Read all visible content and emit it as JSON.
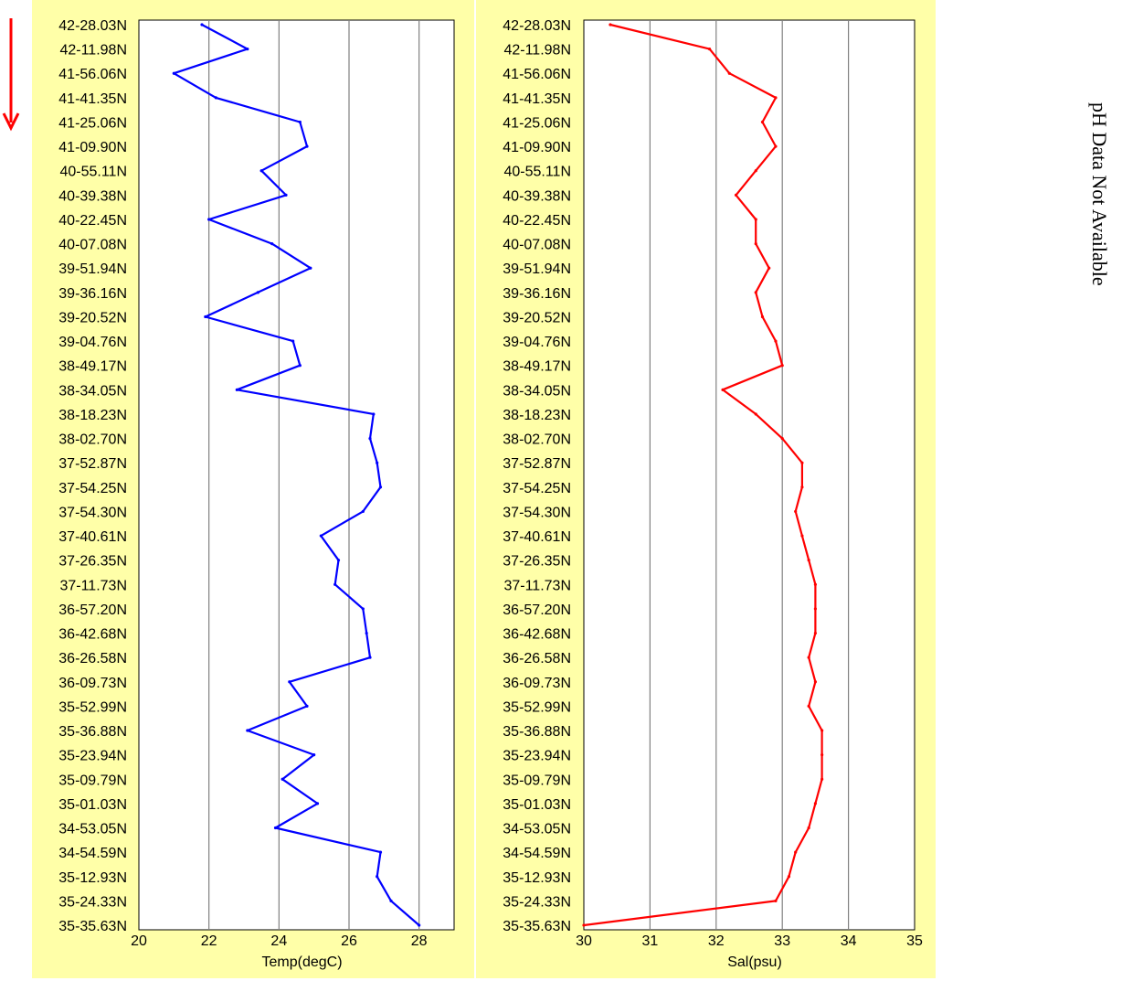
{
  "colors": {
    "panel_background": "#ffffa8",
    "plot_background": "#ffffff",
    "gridline": "#808080",
    "temperature_line": "#0000ff",
    "salinity_line": "#ff0000",
    "direction_arrow": "#ff0000"
  },
  "direction_indicator": {
    "icon": "red-down-arrow"
  },
  "side_note": "pH Data Not Available",
  "chart_data": [
    {
      "type": "line",
      "orientation": "vertical-profile",
      "xlabel": "Temp(degC)",
      "xlim": [
        20,
        29
      ],
      "xticks": [
        "20",
        "22",
        "24",
        "26",
        "28"
      ],
      "grid": true,
      "categories": [
        "42-28.03N",
        "42-11.98N",
        "41-56.06N",
        "41-41.35N",
        "41-25.06N",
        "41-09.90N",
        "40-55.11N",
        "40-39.38N",
        "40-22.45N",
        "40-07.08N",
        "39-51.94N",
        "39-36.16N",
        "39-20.52N",
        "39-04.76N",
        "38-49.17N",
        "38-34.05N",
        "38-18.23N",
        "38-02.70N",
        "37-52.87N",
        "37-54.25N",
        "37-54.30N",
        "37-40.61N",
        "37-26.35N",
        "37-11.73N",
        "36-57.20N",
        "36-42.68N",
        "36-26.58N",
        "36-09.73N",
        "35-52.99N",
        "35-36.88N",
        "35-23.94N",
        "35-09.79N",
        "35-01.03N",
        "34-53.05N",
        "34-54.59N",
        "35-12.93N",
        "35-24.33N",
        "35-35.63N"
      ],
      "series": [
        {
          "values": [
            21.8,
            23.1,
            21.0,
            22.2,
            24.6,
            24.8,
            23.5,
            24.2,
            22.0,
            23.8,
            24.9,
            23.4,
            21.9,
            24.4,
            24.6,
            22.8,
            26.7,
            26.6,
            26.8,
            26.9,
            26.4,
            25.2,
            25.7,
            25.6,
            26.4,
            26.5,
            26.6,
            24.3,
            24.8,
            23.1,
            25.0,
            24.1,
            25.1,
            23.9,
            26.9,
            26.8,
            27.2,
            28.0
          ]
        }
      ]
    },
    {
      "type": "line",
      "orientation": "vertical-profile",
      "xlabel": "Sal(psu)",
      "xlim": [
        30,
        35
      ],
      "xticks": [
        "30",
        "31",
        "32",
        "33",
        "34",
        "35"
      ],
      "grid": true,
      "categories": [
        "42-28.03N",
        "42-11.98N",
        "41-56.06N",
        "41-41.35N",
        "41-25.06N",
        "41-09.90N",
        "40-55.11N",
        "40-39.38N",
        "40-22.45N",
        "40-07.08N",
        "39-51.94N",
        "39-36.16N",
        "39-20.52N",
        "39-04.76N",
        "38-49.17N",
        "38-34.05N",
        "38-18.23N",
        "38-02.70N",
        "37-52.87N",
        "37-54.25N",
        "37-54.30N",
        "37-40.61N",
        "37-26.35N",
        "37-11.73N",
        "36-57.20N",
        "36-42.68N",
        "36-26.58N",
        "36-09.73N",
        "35-52.99N",
        "35-36.88N",
        "35-23.94N",
        "35-09.79N",
        "35-01.03N",
        "34-53.05N",
        "34-54.59N",
        "35-12.93N",
        "35-24.33N",
        "35-35.63N"
      ],
      "series": [
        {
          "values": [
            30.4,
            31.9,
            32.2,
            32.9,
            32.7,
            32.9,
            32.6,
            32.3,
            32.6,
            32.6,
            32.8,
            32.6,
            32.7,
            32.9,
            33.0,
            32.1,
            32.6,
            33.0,
            33.3,
            33.3,
            33.2,
            33.3,
            33.4,
            33.5,
            33.5,
            33.5,
            33.4,
            33.5,
            33.4,
            33.6,
            33.6,
            33.6,
            33.5,
            33.4,
            33.2,
            33.1,
            32.9,
            30.0
          ]
        }
      ]
    }
  ]
}
